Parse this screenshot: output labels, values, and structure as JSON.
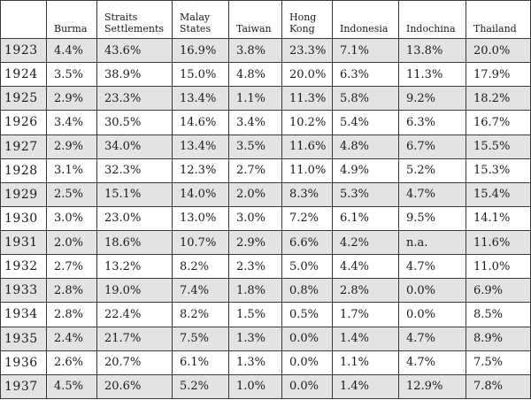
{
  "table": {
    "headers": [
      "",
      "Burma",
      "Straits Settlements",
      "Malay States",
      "Taiwan",
      "Hong Kong",
      "Indonesia",
      "Indochina",
      "Thailand"
    ],
    "rows": [
      [
        "1923",
        "4.4%",
        "43.6%",
        "16.9%",
        "3.8%",
        "23.3%",
        "7.1%",
        "13.8%",
        "20.0%"
      ],
      [
        "1924",
        "3.5%",
        "38.9%",
        "15.0%",
        "4.8%",
        "20.0%",
        "6.3%",
        "11.3%",
        "17.9%"
      ],
      [
        "1925",
        "2.9%",
        "23.3%",
        "13.4%",
        "1.1%",
        "11.3%",
        "5.8%",
        "9.2%",
        "18.2%"
      ],
      [
        "1926",
        "3.4%",
        "30.5%",
        "14.6%",
        "3.4%",
        "10.2%",
        "5.4%",
        "6.3%",
        "16.7%"
      ],
      [
        "1927",
        "2.9%",
        "34.0%",
        "13.4%",
        "3.5%",
        "11.6%",
        "4.8%",
        "6.7%",
        "15.5%"
      ],
      [
        "1928",
        "3.1%",
        "32.3%",
        "12.3%",
        "2.7%",
        "11.0%",
        "4.9%",
        "5.2%",
        "15.3%"
      ],
      [
        "1929",
        "2.5%",
        "15.1%",
        "14.0%",
        "2.0%",
        "8.3%",
        "5.3%",
        "4.7%",
        "15.4%"
      ],
      [
        "1930",
        "3.0%",
        "23.0%",
        "13.0%",
        "3.0%",
        "7.2%",
        "6.1%",
        "9.5%",
        "14.1%"
      ],
      [
        "1931",
        "2.0%",
        "18.6%",
        "10.7%",
        "2.9%",
        "6.6%",
        "4.2%",
        "n.a.",
        "11.6%"
      ],
      [
        "1932",
        "2.7%",
        "13.2%",
        "8.2%",
        "2.3%",
        "5.0%",
        "4.4%",
        "4.7%",
        "11.0%"
      ],
      [
        "1933",
        "2.8%",
        "19.0%",
        "7.4%",
        "1.8%",
        "0.8%",
        "2.8%",
        "0.0%",
        "6.9%"
      ],
      [
        "1934",
        "2.8%",
        "22.4%",
        "8.2%",
        "1.5%",
        "0.5%",
        "1.7%",
        "0.0%",
        "8.5%"
      ],
      [
        "1935",
        "2.4%",
        "21.7%",
        "7.5%",
        "1.3%",
        "0.0%",
        "1.4%",
        "4.7%",
        "8.9%"
      ],
      [
        "1936",
        "2.6%",
        "20.7%",
        "6.1%",
        "1.3%",
        "0.0%",
        "1.1%",
        "4.7%",
        "7.5%"
      ],
      [
        "1937",
        "4.5%",
        "20.6%",
        "5.2%",
        "1.0%",
        "0.0%",
        "1.4%",
        "12.9%",
        "7.8%"
      ]
    ]
  }
}
